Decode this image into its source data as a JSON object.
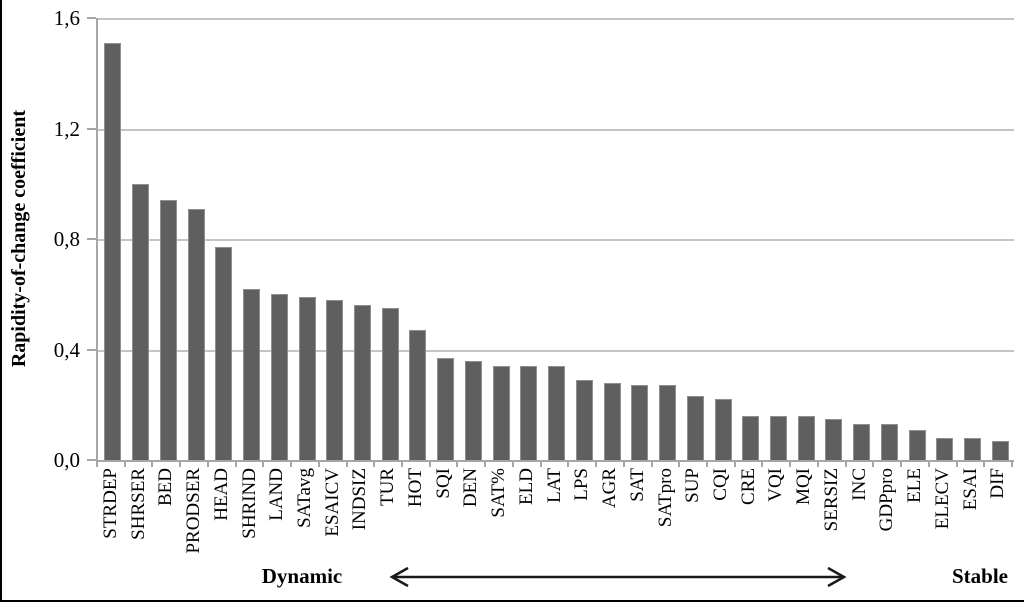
{
  "chart_data": {
    "type": "bar",
    "title": "",
    "xlabel": "",
    "ylabel": "Rapidity-of-change coefficient",
    "ylim": [
      0,
      1.6
    ],
    "ytick_step": 0.4,
    "ytick_labels_top_to_bottom": [
      "1,6",
      "1,2",
      "0,8",
      "0,4",
      "0,0"
    ],
    "grid": true,
    "legend_position": "none",
    "categories": [
      "STRDEP",
      "SHRSER",
      "BED",
      "PRODSER",
      "HEAD",
      "SHRIND",
      "LAND",
      "SATavg",
      "ESAICV",
      "INDSIZ",
      "TUR",
      "HOT",
      "SQI",
      "DEN",
      "SAT%",
      "ELD",
      "LAT",
      "LPS",
      "AGR",
      "SAT",
      "SATpro",
      "SUP",
      "CQI",
      "CRE",
      "VQI",
      "MQI",
      "SERSIZ",
      "INC",
      "GDPpro",
      "ELE",
      "ELECV",
      "ESAI",
      "DIF"
    ],
    "values": [
      1.51,
      1.0,
      0.94,
      0.91,
      0.77,
      0.62,
      0.6,
      0.59,
      0.58,
      0.56,
      0.55,
      0.47,
      0.37,
      0.36,
      0.34,
      0.34,
      0.34,
      0.29,
      0.28,
      0.27,
      0.27,
      0.23,
      0.22,
      0.16,
      0.16,
      0.16,
      0.15,
      0.13,
      0.13,
      0.11,
      0.08,
      0.08,
      0.07
    ],
    "annotations": {
      "left_label": "Dynamic",
      "right_label": "Stable",
      "arrow": "double-headed-horizontal"
    },
    "colors": {
      "bar_fill": "#5f5f5f",
      "bar_edge": "#8f8f8f",
      "gridline": "#c4c4c4",
      "axis_line": "#a6a6a6",
      "text": "#000000",
      "arrow": "#1a1a1a",
      "frame_border": "#000000"
    }
  }
}
